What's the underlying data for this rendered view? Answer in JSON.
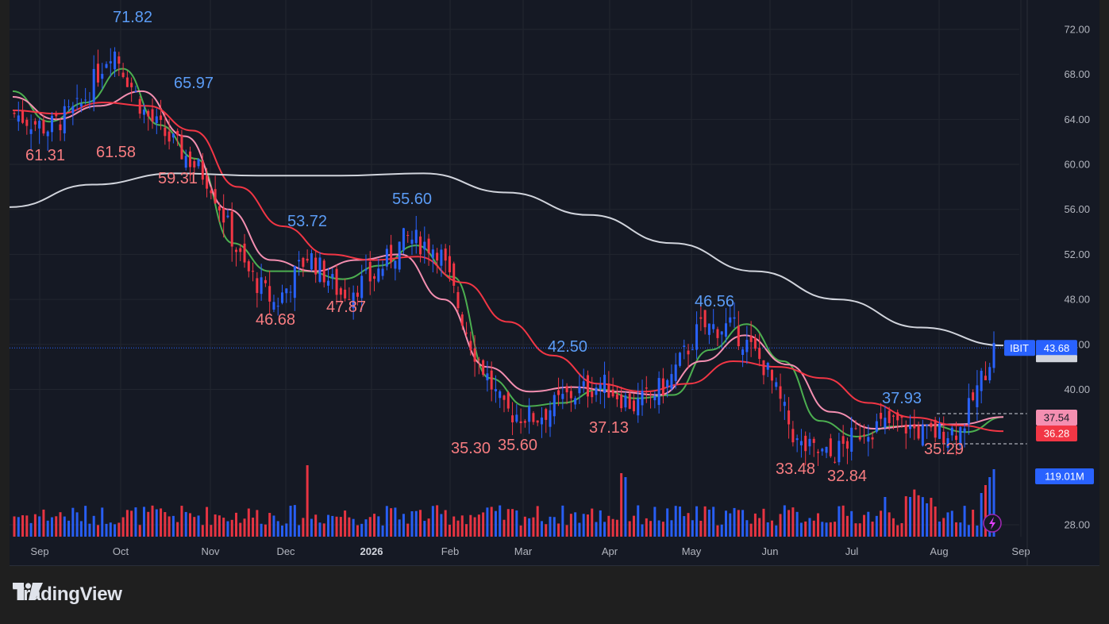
{
  "brand": {
    "name": "TradingView",
    "logo_icon": "tradingview-logo-icon"
  },
  "symbol": "IBIT",
  "colors": {
    "background": "#151924",
    "grid": "#22262f",
    "up": "#2962ff",
    "down": "#f23645",
    "volume_up": "#2962ff",
    "volume_down": "#f23645",
    "ma_fast": "#4caf50",
    "ma_mid": "#f48fb1",
    "ma_slow": "#f23645",
    "ma_long": "#d1d4dc",
    "hi_label": "#5b9cf6",
    "lo_label": "#f77c80"
  },
  "price_scale": [
    "72.00",
    "68.00",
    "64.00",
    "60.00",
    "56.00",
    "52.00",
    "48.00",
    "44.00",
    "40.00",
    "28.00"
  ],
  "time_scale": [
    "Sep",
    "Oct",
    "Nov",
    "Dec",
    "2026",
    "Feb",
    "Mar",
    "Apr",
    "May",
    "Jun",
    "Jul",
    "Aug",
    "Sep"
  ],
  "tags": {
    "last_price": {
      "symbol": "IBIT",
      "value": "43.68"
    },
    "ma_mid": "37.54",
    "ma_slow": "36.28",
    "volume": "119.01M"
  },
  "chart_data": {
    "type": "candlestick",
    "symbol": "IBIT",
    "ylim": [
      26.8,
      74.0
    ],
    "last_price": 43.68,
    "period": {
      "start": "Aug",
      "end": "Aug"
    },
    "key_levels": {
      "highs": [
        {
          "month": "Oct",
          "value": 71.82,
          "label": "71.82"
        },
        {
          "month": "Oct",
          "value": 65.97,
          "label": "65.97"
        },
        {
          "month": "Dec",
          "value": 53.72,
          "label": "53.72"
        },
        {
          "month": "Jan",
          "value": 55.6,
          "label": "55.60"
        },
        {
          "month": "Mar",
          "value": 42.5,
          "label": "42.50"
        },
        {
          "month": "May",
          "value": 46.56,
          "label": "46.56"
        },
        {
          "month": "Jul",
          "value": 37.93,
          "label": "37.93"
        }
      ],
      "lows": [
        {
          "month": "Sep",
          "value": 61.31,
          "label": "61.31"
        },
        {
          "month": "Sep",
          "value": 61.58,
          "label": "61.58"
        },
        {
          "month": "Oct",
          "value": 59.31,
          "label": "59.31"
        },
        {
          "month": "Nov",
          "value": 46.68,
          "label": "46.68"
        },
        {
          "month": "Dec",
          "value": 47.87,
          "label": "47.87"
        },
        {
          "month": "Feb",
          "value": 35.3,
          "label": "35.30"
        },
        {
          "month": "Feb",
          "value": 35.6,
          "label": "35.60"
        },
        {
          "month": "Mar",
          "value": 37.13,
          "label": "37.13"
        },
        {
          "month": "Jun",
          "value": 33.48,
          "label": "33.48"
        },
        {
          "month": "Jun",
          "value": 32.84,
          "label": "32.84"
        },
        {
          "month": "Jul",
          "value": 35.29,
          "label": "35.29"
        }
      ]
    },
    "close_path": [
      [
        "Aug",
        64.5
      ],
      [
        "Sep",
        63.2
      ],
      [
        "Sep",
        65.0
      ],
      [
        "Oct",
        70.5
      ],
      [
        "Oct",
        64.5
      ],
      [
        "Oct",
        61.5
      ],
      [
        "Nov",
        58.5
      ],
      [
        "Nov",
        51.0
      ],
      [
        "Nov",
        47.5
      ],
      [
        "Dec",
        52.0
      ],
      [
        "Dec",
        48.5
      ],
      [
        "Dec",
        50.0
      ],
      [
        "2026",
        53.5
      ],
      [
        "2026",
        52.5
      ],
      [
        "Feb",
        44.0
      ],
      [
        "Feb",
        38.0
      ],
      [
        "Feb",
        37.5
      ],
      [
        "Mar",
        39.5
      ],
      [
        "Mar",
        40.5
      ],
      [
        "Apr",
        38.5
      ],
      [
        "Apr",
        40.5
      ],
      [
        "May",
        45.5
      ],
      [
        "May",
        45.5
      ],
      [
        "Jun",
        42.0
      ],
      [
        "Jun",
        35.0
      ],
      [
        "Jun",
        34.0
      ],
      [
        "Jul",
        36.5
      ],
      [
        "Jul",
        37.0
      ],
      [
        "Aug",
        36.0
      ],
      [
        "Aug",
        36.5
      ],
      [
        "Aug",
        43.68
      ]
    ],
    "moving_averages": [
      {
        "color": "#4caf50",
        "path": [
          [
            "Aug",
            66.5
          ],
          [
            "Sep",
            63.8
          ],
          [
            "Oct",
            65.5
          ],
          [
            "Oct",
            68.5
          ],
          [
            "Oct",
            63.5
          ],
          [
            "Nov",
            60.5
          ],
          [
            "Nov",
            53.0
          ],
          [
            "Dec",
            50.5
          ],
          [
            "Dec",
            50.5
          ],
          [
            "Dec",
            49.8
          ],
          [
            "2026",
            51.0
          ],
          [
            "2026",
            52.8
          ],
          [
            "Feb",
            50.0
          ],
          [
            "Feb",
            41.0
          ],
          [
            "Feb",
            38.5
          ],
          [
            "Mar",
            38.8
          ],
          [
            "Mar",
            40.0
          ],
          [
            "Apr",
            39.2
          ],
          [
            "Apr",
            39.5
          ],
          [
            "May",
            43.5
          ],
          [
            "May",
            45.8
          ],
          [
            "Jun",
            42.5
          ],
          [
            "Jun",
            37.2
          ],
          [
            "Jul",
            35.8
          ],
          [
            "Jul",
            36.7
          ],
          [
            "Aug",
            36.8
          ],
          [
            "Aug",
            36.2
          ],
          [
            "Aug",
            37.54
          ]
        ]
      },
      {
        "color": "#f48fb1",
        "path": [
          [
            "Aug",
            66.0
          ],
          [
            "Sep",
            64.0
          ],
          [
            "Oct",
            65.2
          ],
          [
            "Oct",
            66.5
          ],
          [
            "Nov",
            62.5
          ],
          [
            "Nov",
            56.0
          ],
          [
            "Dec",
            51.5
          ],
          [
            "Dec",
            50.5
          ],
          [
            "2026",
            51.5
          ],
          [
            "2026",
            52.0
          ],
          [
            "Feb",
            48.0
          ],
          [
            "Feb",
            42.0
          ],
          [
            "Mar",
            39.8
          ],
          [
            "Mar",
            40.2
          ],
          [
            "Apr",
            39.8
          ],
          [
            "Apr",
            39.5
          ],
          [
            "May",
            42.5
          ],
          [
            "May",
            44.8
          ],
          [
            "Jun",
            42.2
          ],
          [
            "Jun",
            38.0
          ],
          [
            "Jul",
            36.5
          ],
          [
            "Jul",
            36.8
          ],
          [
            "Aug",
            36.9
          ],
          [
            "Aug",
            37.54
          ]
        ]
      },
      {
        "color": "#f23645",
        "path": [
          [
            "Aug",
            64.8
          ],
          [
            "Sep",
            64.5
          ],
          [
            "Oct",
            65.5
          ],
          [
            "Oct",
            65.2
          ],
          [
            "Nov",
            63.0
          ],
          [
            "Nov",
            58.0
          ],
          [
            "Dec",
            54.5
          ],
          [
            "Dec",
            52.0
          ],
          [
            "2026",
            51.5
          ],
          [
            "2026",
            51.8
          ],
          [
            "Feb",
            49.5
          ],
          [
            "Feb",
            46.0
          ],
          [
            "Mar",
            43.0
          ],
          [
            "Apr",
            40.5
          ],
          [
            "Apr",
            39.8
          ],
          [
            "May",
            40.5
          ],
          [
            "May",
            42.5
          ],
          [
            "Jun",
            42.0
          ],
          [
            "Jun",
            41.0
          ],
          [
            "Jul",
            38.8
          ],
          [
            "Jul",
            37.5
          ],
          [
            "Aug",
            36.8
          ],
          [
            "Aug",
            36.28
          ]
        ]
      },
      {
        "color": "#d1d4dc",
        "path": [
          [
            "Aug",
            56.2
          ],
          [
            "Oct",
            58.2
          ],
          [
            "Nov",
            59.2
          ],
          [
            "Dec",
            59.0
          ],
          [
            "2026",
            59.0
          ],
          [
            "Feb",
            59.2
          ],
          [
            "Mar",
            57.5
          ],
          [
            "Apr",
            55.5
          ],
          [
            "May",
            53.0
          ],
          [
            "Jun",
            50.5
          ],
          [
            "Jul",
            48.0
          ],
          [
            "Aug",
            45.5
          ],
          [
            "Aug",
            43.9
          ]
        ]
      }
    ],
    "volume": {
      "last": "119.01M"
    }
  }
}
